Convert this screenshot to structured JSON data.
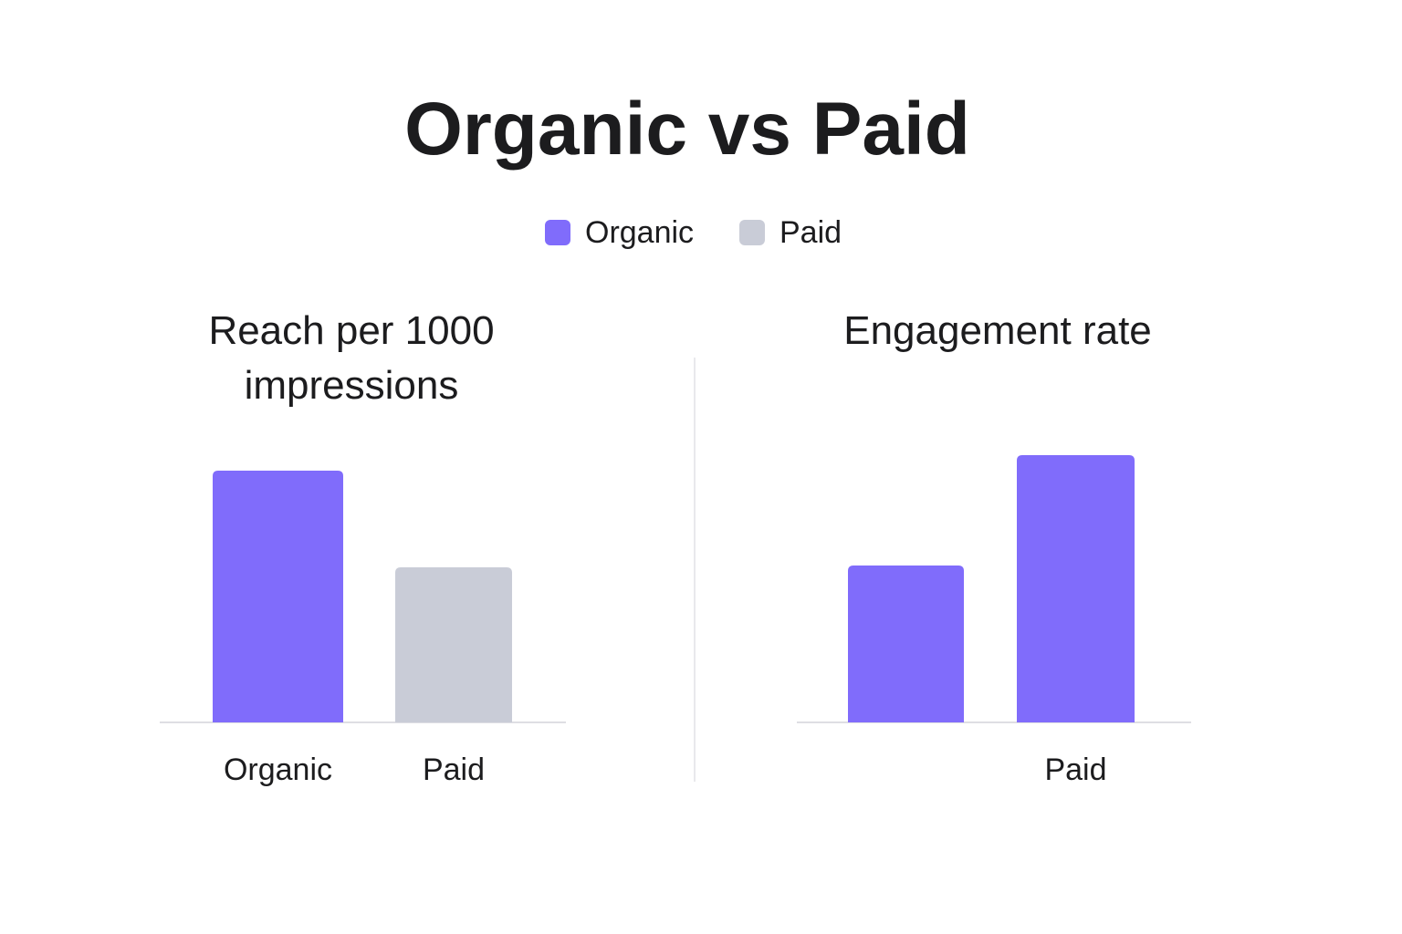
{
  "title": "Organic vs Paid",
  "legend": [
    {
      "name": "Organic",
      "color": "#806cfb"
    },
    {
      "name": "Paid",
      "color": "#c9ccd7"
    }
  ],
  "chart_data": [
    {
      "type": "bar",
      "title": "Reach per 1000 impressions",
      "categories": [
        "Organic",
        "Paid"
      ],
      "values": [
        276,
        170
      ],
      "colors": [
        "#806cfb",
        "#c9ccd7"
      ]
    },
    {
      "type": "bar",
      "title": "Engagement rate",
      "categories": [
        null,
        "Paid"
      ],
      "values": [
        172,
        293
      ],
      "colors": [
        "#806cfb",
        "#806cfb"
      ]
    }
  ]
}
